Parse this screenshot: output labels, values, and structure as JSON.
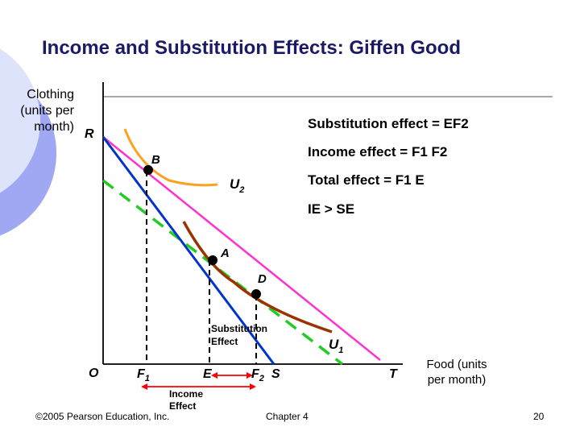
{
  "title": "Income and Substitution Effects: Giffen Good",
  "axes": {
    "y_label": [
      "Clothing",
      "(units per",
      "month)"
    ],
    "x_label": [
      "Food (units",
      "per month)"
    ]
  },
  "effects": [
    "Substitution effect = EF2",
    "Income effect = F1 F2",
    "Total effect = F1 E",
    "IE > SE"
  ],
  "points": {
    "R": "R",
    "O": "O",
    "F1": "F",
    "F1_sub": "1",
    "E": "E",
    "F2": "F",
    "F2_sub": "2",
    "S": "S",
    "T": "T",
    "A": "A",
    "B": "B",
    "D": "D"
  },
  "curves": {
    "U1": "U",
    "U1_sub": "1",
    "U2": "U",
    "U2_sub": "2"
  },
  "annotations": {
    "substitution": [
      "Substitution",
      "Effect"
    ],
    "income": [
      "Income",
      "Effect"
    ]
  },
  "colors": {
    "title": "#1a1a66",
    "budget_RS": "#0033cc",
    "budget_RT": "#ff33cc",
    "dashed_parallel": "#22cc22",
    "U1": "#993300",
    "U2": "#ffa020",
    "arrow": "#ff0000",
    "circle": "#aab4ff"
  },
  "footer": {
    "copyright": "©2005 Pearson Education, Inc.",
    "chapter": "Chapter 4",
    "page": "20"
  }
}
